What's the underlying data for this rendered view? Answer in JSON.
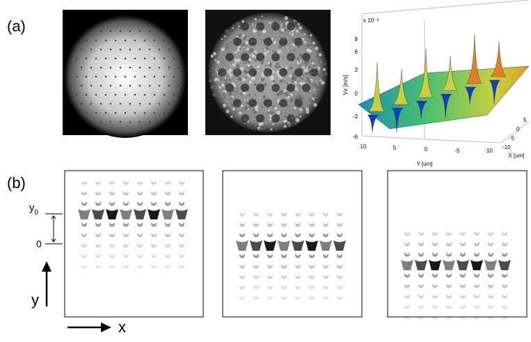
{
  "panel_a": {
    "label": "(a)",
    "surface_plot": {
      "exponent_label": "x 10⁻³",
      "z_axis_label": "Vx [m/s]",
      "y_axis_label": "Y [um]",
      "x_axis_label": "X [um]",
      "z_ticks": [
        "8",
        "6",
        "3",
        "0",
        "-3",
        "-6"
      ],
      "y_ticks": [
        "10",
        "5",
        "0",
        "-5",
        "-10"
      ],
      "x_ticks": [
        "-10",
        "-5",
        "0",
        "5"
      ]
    }
  },
  "panel_b": {
    "label": "(b)",
    "y0_label": "y",
    "y0_subscript": "0",
    "zero_label": "0",
    "y_label": "y",
    "x_label": "x"
  }
}
